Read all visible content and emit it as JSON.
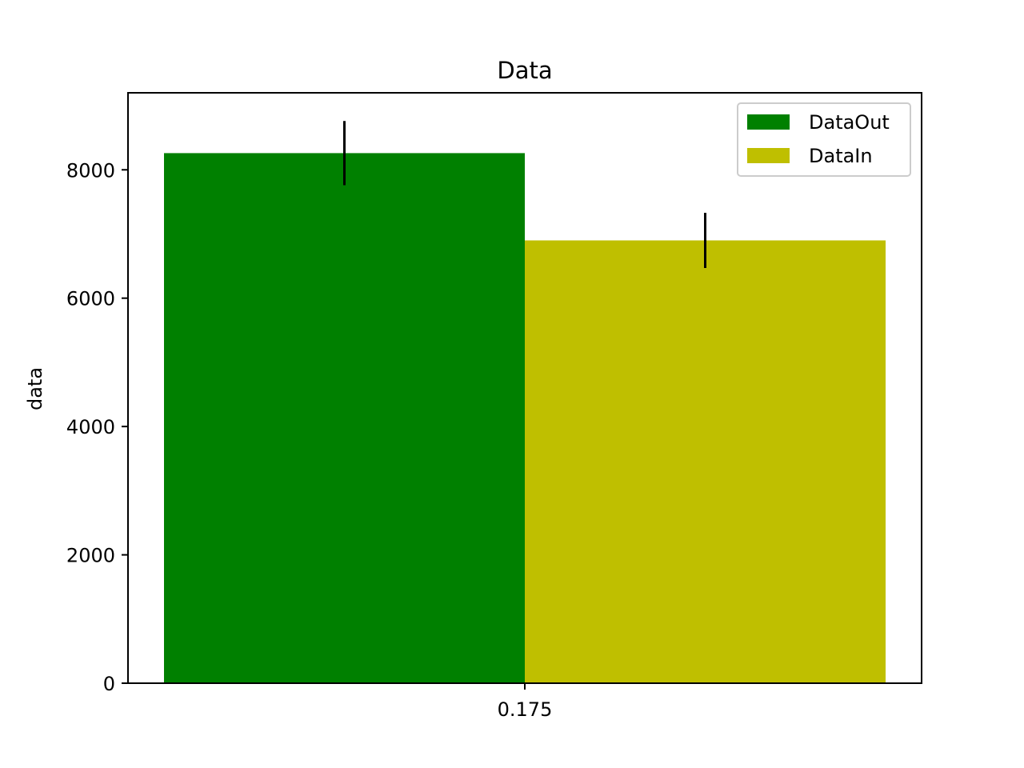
{
  "chart_data": {
    "type": "bar",
    "title": "Data",
    "xlabel": "",
    "ylabel": "data",
    "categories": [
      "0.175"
    ],
    "ylim": [
      0,
      9200
    ],
    "yticks": [
      "0",
      "2000",
      "4000",
      "6000",
      "8000"
    ],
    "grid": false,
    "legend_position": "top-right",
    "series": [
      {
        "name": "DataOut",
        "color": "#008000",
        "values": [
          8260
        ],
        "errors": [
          500
        ]
      },
      {
        "name": "DataIn",
        "color": "#bfbf00",
        "values": [
          6900
        ],
        "errors": [
          430
        ]
      }
    ]
  }
}
